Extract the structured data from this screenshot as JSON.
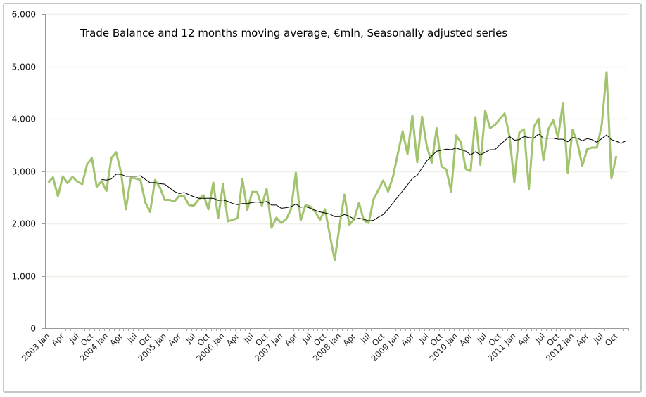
{
  "chart_data": {
    "type": "line",
    "title": "Trade Balance and 12 months moving average, €mln, Seasonally adjusted series",
    "xlabel": "",
    "ylabel": "",
    "ylim": [
      0,
      6000
    ],
    "y_ticks": [
      "0",
      "1,000",
      "2,000",
      "3,000",
      "4,000",
      "5,000",
      "6,000"
    ],
    "y_tick_values": [
      0,
      1000,
      2000,
      3000,
      4000,
      5000,
      6000
    ],
    "grid": true,
    "legend": "none",
    "x_months_start": "2003 Jan",
    "x_month_count": 120,
    "x_tick_labels": [
      "2003 Jan",
      "Apr",
      "Jul",
      "Oct",
      "2004 Jan",
      "Apr",
      "Jul",
      "Oct",
      "2005 Jan",
      "Apr",
      "Jul",
      "Oct",
      "2006 Jan",
      "Apr",
      "Jul",
      "Oct",
      "2007 Jan",
      "Apr",
      "Jul",
      "Oct",
      "2008 Jan",
      "Apr",
      "Jul",
      "Oct",
      "2009 Jan",
      "Apr",
      "Jul",
      "Oct",
      "2010 Jan",
      "Apr",
      "Jul",
      "Oct",
      "2011 Jan",
      "Apr",
      "Jul",
      "Oct",
      "2012 Jan",
      "Apr",
      "Jul",
      "Oct"
    ],
    "series": [
      {
        "name": "Trade Balance",
        "color": "#a2c46e",
        "values": [
          2780,
          2880,
          2520,
          2900,
          2770,
          2890,
          2800,
          2750,
          3130,
          3250,
          2700,
          2810,
          2620,
          3250,
          3360,
          2980,
          2270,
          2870,
          2860,
          2830,
          2400,
          2220,
          2830,
          2690,
          2450,
          2450,
          2420,
          2530,
          2520,
          2350,
          2340,
          2460,
          2540,
          2270,
          2780,
          2100,
          2760,
          2040,
          2070,
          2100,
          2850,
          2260,
          2600,
          2600,
          2340,
          2660,
          1920,
          2110,
          2010,
          2080,
          2270,
          2970,
          2060,
          2350,
          2320,
          2220,
          2070,
          2270,
          1780,
          1300,
          1950,
          2550,
          1970,
          2080,
          2390,
          2060,
          2010,
          2460,
          2640,
          2820,
          2610,
          2890,
          3330,
          3760,
          3320,
          4060,
          3170,
          4040,
          3470,
          3160,
          3820,
          3090,
          3030,
          2610,
          3680,
          3550,
          3040,
          3000,
          4030,
          3120,
          4150,
          3820,
          3880,
          3990,
          4100,
          3670,
          2790,
          3730,
          3800,
          2660,
          3840,
          4000,
          3210,
          3800,
          3970,
          3640,
          4300,
          2970,
          3790,
          3540,
          3100,
          3420,
          3450,
          3450,
          3880,
          4890,
          2860,
          3290,
          null,
          null
        ]
      },
      {
        "name": "12 months moving average",
        "color": "#000000",
        "values": [
          null,
          null,
          null,
          null,
          null,
          null,
          null,
          null,
          null,
          null,
          null,
          2840,
          2830,
          2850,
          2940,
          2940,
          2900,
          2900,
          2900,
          2910,
          2840,
          2780,
          2780,
          2760,
          2750,
          2680,
          2610,
          2570,
          2590,
          2550,
          2510,
          2480,
          2480,
          2480,
          2480,
          2440,
          2450,
          2420,
          2380,
          2360,
          2380,
          2380,
          2400,
          2410,
          2400,
          2420,
          2350,
          2350,
          2290,
          2300,
          2320,
          2370,
          2310,
          2320,
          2290,
          2250,
          2220,
          2200,
          2180,
          2130,
          2130,
          2170,
          2140,
          2080,
          2100,
          2080,
          2050,
          2060,
          2120,
          2170,
          2270,
          2390,
          2510,
          2620,
          2740,
          2860,
          2920,
          3060,
          3200,
          3290,
          3380,
          3400,
          3420,
          3410,
          3440,
          3410,
          3380,
          3310,
          3370,
          3310,
          3360,
          3410,
          3410,
          3500,
          3580,
          3660,
          3590,
          3600,
          3660,
          3640,
          3630,
          3710,
          3630,
          3630,
          3630,
          3610,
          3610,
          3560,
          3640,
          3630,
          3580,
          3620,
          3600,
          3550,
          3620,
          3690,
          3600,
          3570,
          3530,
          3580
        ]
      }
    ]
  }
}
